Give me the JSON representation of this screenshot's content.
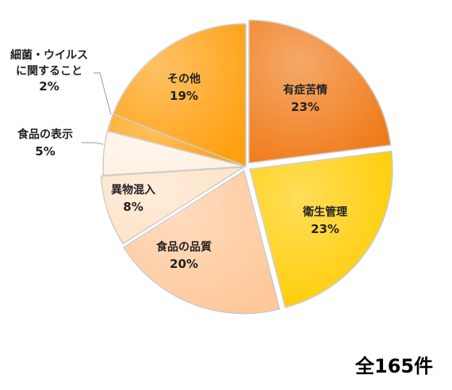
{
  "chart_data": {
    "type": "pie",
    "slices": [
      {
        "label": "有症苦情",
        "percent_label": "23%",
        "value": 23,
        "color": "#F07A18"
      },
      {
        "label": "衛生管理",
        "percent_label": "23%",
        "value": 23,
        "color": "#FFCC00"
      },
      {
        "label": "食品の品質",
        "percent_label": "20%",
        "value": 20,
        "color": "#FFC89A"
      },
      {
        "label": "異物混入",
        "percent_label": "8%",
        "value": 8,
        "color": "#FFE2C6"
      },
      {
        "label": "食品の表示",
        "percent_label": "5%",
        "value": 5,
        "color": "#FFF1E2"
      },
      {
        "label": "細菌・ウイルス\nに関すること",
        "percent_label": "2%",
        "value": 2,
        "color": "#FFA010"
      },
      {
        "label": "その他",
        "percent_label": "19%",
        "value": 19,
        "color": "#FFA010"
      }
    ],
    "total_label": "全165件"
  }
}
